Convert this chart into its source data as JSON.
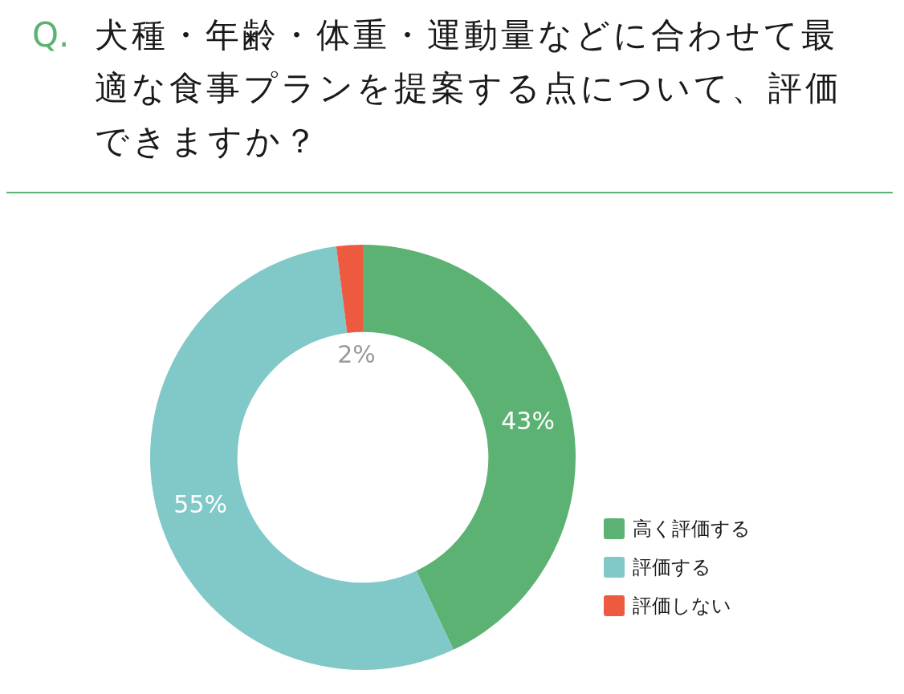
{
  "chart_data": {
    "type": "donut",
    "title": "犬種・年齢・体重・運動量などに合わせて最適な食事プランを提案する点について、評価できますか？",
    "annotations": [
      "Q."
    ],
    "categories": [
      "高く評価する",
      "評価する",
      "評価しない"
    ],
    "values": [
      43,
      55,
      2
    ],
    "colors": [
      "#5bb272",
      "#81c8c9",
      "#ee5a40"
    ],
    "value_labels": [
      "43%",
      "55%",
      "2%"
    ],
    "legend": "bottom right"
  }
}
